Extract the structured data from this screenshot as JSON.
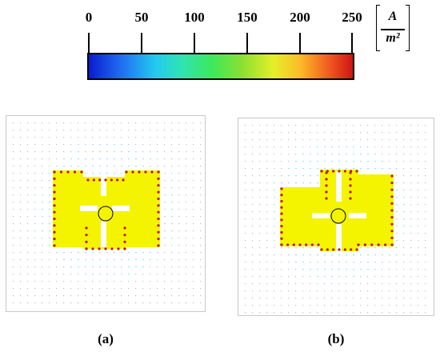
{
  "colorbar": {
    "ticks": [
      "0",
      "50",
      "100",
      "150",
      "200",
      "250"
    ],
    "unit_numerator": "A",
    "unit_denominator": "m²"
  },
  "panels": [
    {
      "label": "(a)"
    },
    {
      "label": "(b)"
    }
  ],
  "colors": {
    "conductor": "#f4f400",
    "arrow_strong": "#c0161a",
    "arrow_weak": "#8a8fae",
    "halo": "#8fe0ee"
  }
}
